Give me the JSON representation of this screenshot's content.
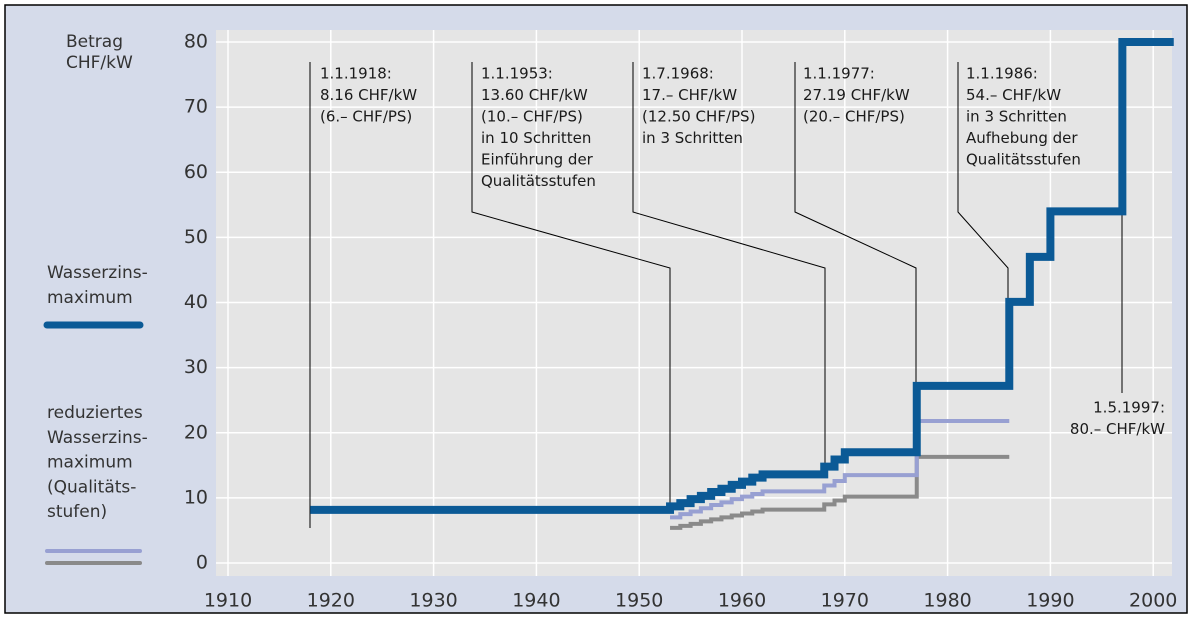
{
  "chart_data": {
    "type": "step",
    "y_axis_label": [
      "Betrag",
      "CHF/kW"
    ],
    "xlim": [
      1910,
      2002
    ],
    "ylim": [
      0,
      80
    ],
    "xticks": [
      1910,
      1920,
      1930,
      1940,
      1950,
      1960,
      1970,
      1980,
      1990,
      2000
    ],
    "yticks": [
      0,
      10,
      20,
      30,
      40,
      50,
      60,
      70,
      80
    ],
    "grid": true,
    "series": [
      {
        "name": "Wasserzins-\nmaximum",
        "color": "#0b5a96",
        "x": [
          1918,
          1953,
          1954,
          1955,
          1956,
          1957,
          1958,
          1959,
          1960,
          1961,
          1962,
          1968,
          1969,
          1970,
          1977,
          1986,
          1988,
          1990,
          1997,
          2002
        ],
        "values": [
          8.16,
          8.7,
          9.2,
          9.8,
          10.3,
          10.9,
          11.4,
          12.0,
          12.5,
          13.1,
          13.6,
          14.8,
          15.9,
          17.0,
          27.19,
          40.1,
          47.0,
          54.0,
          80,
          80
        ]
      },
      {
        "name": "reduziertes\nWasserzins-\nmaximum\n(Qualitäts-\nstufen)",
        "color": "#98a0d2",
        "x": [
          1953,
          1954,
          1955,
          1956,
          1957,
          1958,
          1959,
          1960,
          1961,
          1962,
          1968,
          1969,
          1970,
          1977,
          1986
        ],
        "values": [
          7.0,
          7.5,
          7.9,
          8.4,
          8.9,
          9.3,
          9.8,
          10.2,
          10.6,
          11.0,
          11.9,
          12.6,
          13.5,
          21.8,
          21.8
        ]
      },
      {
        "color": "#8a8a8a",
        "x": [
          1953,
          1954,
          1955,
          1956,
          1957,
          1958,
          1959,
          1960,
          1961,
          1962,
          1968,
          1969,
          1970,
          1977,
          1986
        ],
        "values": [
          5.4,
          5.7,
          6.0,
          6.4,
          6.7,
          7.0,
          7.3,
          7.6,
          7.9,
          8.2,
          9.0,
          9.6,
          10.2,
          16.3,
          16.3
        ]
      }
    ],
    "annotations": [
      {
        "lines": [
          "1.1.1918:",
          "8.16 CHF/kW",
          "(6.– CHF/PS)"
        ]
      },
      {
        "lines": [
          "1.1.1953:",
          "13.60 CHF/kW",
          "(10.– CHF/PS)",
          "in 10 Schritten",
          "Einführung der",
          "Qualitätsstufen"
        ]
      },
      {
        "lines": [
          "1.7.1968:",
          "17.– CHF/kW",
          "(12.50 CHF/PS)",
          "in 3 Schritten"
        ]
      },
      {
        "lines": [
          "1.1.1977:",
          "27.19 CHF/kW",
          "(20.– CHF/PS)"
        ]
      },
      {
        "lines": [
          "1.1.1986:",
          "54.– CHF/kW",
          "in 3 Schritten",
          "Aufhebung der",
          "Qualitätsstufen"
        ]
      },
      {
        "lines": [
          "1.5.1997:",
          "80.– CHF/kW"
        ]
      }
    ]
  }
}
